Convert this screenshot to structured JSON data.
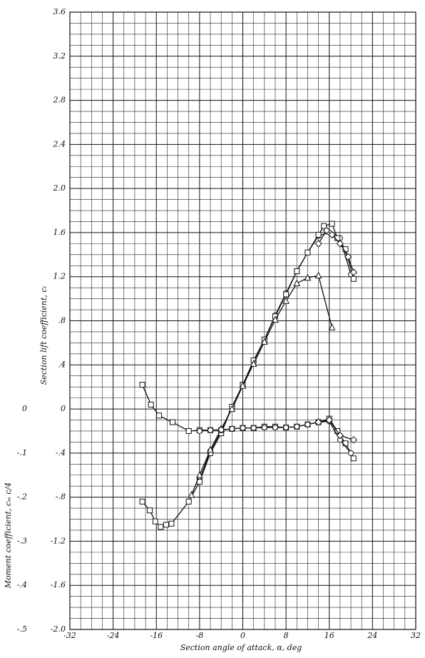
{
  "chart_data": {
    "type": "line",
    "x_label": "Section angle of attack, α, deg",
    "y_label": "Section lift coefficient, cₗ",
    "y2_label": "Moment coefficient, cₘ c/4",
    "xlim": [
      -32,
      32
    ],
    "xticks": [
      -32,
      -24,
      -16,
      -8,
      0,
      8,
      16,
      24,
      32
    ],
    "ylim": [
      -2.0,
      3.6
    ],
    "yticks": [
      {
        "value": -2.0,
        "label": "-2.0"
      },
      -1.6,
      -1.2,
      {
        "value": -0.8,
        "label": "-.8"
      },
      {
        "value": -0.4,
        "label": "-.4"
      },
      0,
      {
        "value": 0.4,
        "label": ".4"
      },
      {
        "value": 0.8,
        "label": ".8"
      },
      1.2,
      1.6,
      {
        "value": 2.0,
        "label": "2.0"
      },
      2.4,
      2.8,
      3.2,
      3.6
    ],
    "y2lim": [
      -0.5,
      0.9
    ],
    "y2ticks": [
      {
        "value": -0.5,
        "label": "-.5"
      },
      {
        "value": -0.4,
        "label": "-.4"
      },
      {
        "value": -0.3,
        "label": "-.3"
      },
      {
        "value": -0.2,
        "label": "-.2"
      },
      {
        "value": -0.1,
        "label": "-.1"
      },
      0
    ],
    "grid": true,
    "series": [
      {
        "marker": "circle",
        "color": "#111",
        "x": [
          -8,
          -6,
          -4,
          -2,
          0,
          2,
          4,
          6,
          8,
          10,
          12,
          14,
          16,
          18,
          20
        ],
        "values": [
          -0.64,
          -0.38,
          -0.2,
          0.02,
          0.22,
          0.43,
          0.63,
          0.85,
          1.05,
          1.25,
          1.42,
          1.57,
          1.6,
          1.55,
          1.22
        ]
      },
      {
        "marker": "square",
        "color": "#111",
        "x": [
          -18.6,
          -17.2,
          -16.2,
          -15.2,
          -14.2,
          -13.2,
          -10,
          -8,
          -6,
          -4,
          -2,
          0,
          2,
          4,
          6,
          8,
          10,
          12,
          14,
          15,
          16.5,
          17.5,
          19,
          20.5
        ],
        "values": [
          -0.84,
          -0.92,
          -1.02,
          -1.07,
          -1.05,
          -1.04,
          -0.84,
          -0.66,
          -0.4,
          -0.22,
          0.02,
          0.22,
          0.44,
          0.63,
          0.84,
          1.04,
          1.25,
          1.42,
          1.58,
          1.66,
          1.68,
          1.55,
          1.45,
          1.18
        ]
      },
      {
        "marker": "triangle",
        "color": "#111",
        "x": [
          -9.5,
          -8,
          -6,
          -4,
          -2,
          0,
          2,
          4,
          6,
          8,
          10,
          12,
          14,
          16.5
        ],
        "values": [
          -0.78,
          -0.6,
          -0.37,
          -0.18,
          0,
          0.21,
          0.41,
          0.61,
          0.81,
          0.98,
          1.14,
          1.19,
          1.21,
          0.74
        ]
      },
      {
        "marker": "diamond",
        "color": "#111",
        "x": [
          14,
          15.5,
          16.5,
          18,
          19.5,
          20.5
        ],
        "values": [
          1.5,
          1.62,
          1.58,
          1.5,
          1.38,
          1.24
        ]
      },
      {
        "marker": "square",
        "color": "#111",
        "axis": "y2",
        "x": [
          -18.6,
          -17,
          -15.5,
          -13,
          -10,
          -8,
          -6,
          -4,
          -2,
          0,
          2,
          4,
          6,
          8,
          10,
          12,
          14,
          16,
          17.5,
          19,
          20.5
        ],
        "values": [
          0.055,
          0.01,
          -0.015,
          -0.03,
          -0.05,
          -0.048,
          -0.048,
          -0.048,
          -0.045,
          -0.043,
          -0.043,
          -0.04,
          -0.04,
          -0.042,
          -0.04,
          -0.035,
          -0.03,
          -0.022,
          -0.05,
          -0.078,
          -0.112
        ]
      },
      {
        "marker": "circle",
        "color": "#111",
        "axis": "y2",
        "x": [
          -8,
          -6,
          -4,
          -2,
          0,
          2,
          4,
          6,
          8,
          10,
          12,
          14,
          16,
          18,
          20
        ],
        "values": [
          -0.05,
          -0.048,
          -0.047,
          -0.045,
          -0.043,
          -0.043,
          -0.042,
          -0.042,
          -0.042,
          -0.04,
          -0.035,
          -0.03,
          -0.028,
          -0.07,
          -0.1
        ]
      },
      {
        "marker": "diamond",
        "color": "#111",
        "axis": "y2",
        "x": [
          14,
          16,
          18,
          20.5
        ],
        "values": [
          -0.03,
          -0.025,
          -0.06,
          -0.07
        ]
      }
    ]
  }
}
